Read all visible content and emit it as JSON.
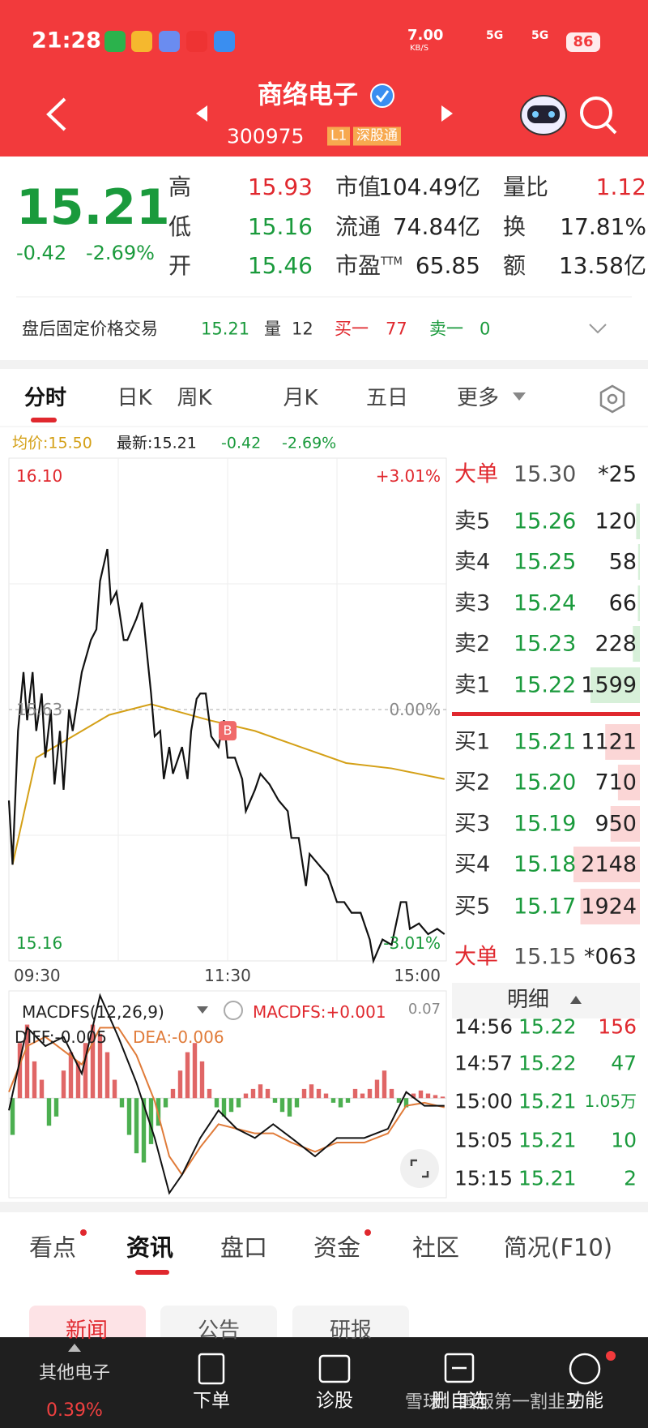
{
  "status_bar": {
    "time": "21:28",
    "speed": "7.00",
    "speed_unit": "KB/S",
    "network": [
      "5G",
      "5G"
    ],
    "battery": "86"
  },
  "header": {
    "title": "商络电子",
    "code": "300975",
    "tags": [
      "L1",
      "深股通"
    ]
  },
  "quote": {
    "price": "15.21",
    "change": "-0.42",
    "change_pct": "-2.69%",
    "stats": [
      [
        {
          "label": "高",
          "value": "15.93"
        },
        {
          "label": "低",
          "value": "15.16"
        },
        {
          "label": "开",
          "value": "15.46"
        }
      ],
      [
        {
          "label": "市值",
          "value": "104.49亿"
        },
        {
          "label": "流通",
          "value": "74.84亿"
        },
        {
          "label": "市盈",
          "sup": "TTM",
          "value": "65.85"
        }
      ],
      [
        {
          "label": "量比",
          "value": "1.12"
        },
        {
          "label": "换",
          "value": "17.81%"
        },
        {
          "label": "额",
          "value": "13.58亿"
        }
      ]
    ]
  },
  "after_hours": {
    "label": "盘后固定价格交易",
    "price": "15.21",
    "volume_label": "量",
    "volume": "12",
    "bid1_label": "买一",
    "bid1": "77",
    "ask1_label": "卖一",
    "ask1": "0"
  },
  "tabs": [
    "分时",
    "日K",
    "周K",
    "月K",
    "五日",
    "更多"
  ],
  "info_line": {
    "avg": "均价:15.50",
    "latest": "最新:15.21",
    "change": "-0.42",
    "change_pct": "-2.69%"
  },
  "intraday": {
    "type": "line",
    "ylim": [
      15.16,
      16.1
    ],
    "xlim": [
      0,
      240
    ],
    "yticks": [
      {
        "value": 16.1,
        "label": "16.10"
      },
      15.63,
      15.16
    ],
    "pct_labels": [
      "+3.01%",
      "0.00%",
      "-3.01%"
    ],
    "time_labels": [
      "09:30",
      "11:30",
      "15:00"
    ],
    "price": {
      "color": "#111111",
      "x": [
        0,
        2,
        5,
        8,
        10,
        13,
        15,
        18,
        20,
        23,
        25,
        28,
        30,
        33,
        35,
        40,
        45,
        48,
        50,
        54,
        56,
        59,
        63,
        65,
        70,
        73,
        75,
        78,
        80,
        83,
        85,
        88,
        90,
        95,
        98,
        100,
        103,
        105,
        108,
        111,
        115,
        118,
        120,
        124,
        128,
        130,
        135,
        138,
        143,
        148,
        153,
        155,
        159,
        163,
        165,
        170,
        175,
        180,
        184,
        188,
        193,
        198,
        200,
        205,
        210,
        215,
        218,
        220,
        225,
        230,
        235,
        239
      ],
      "values": [
        15.46,
        15.34,
        15.59,
        15.7,
        15.61,
        15.7,
        15.59,
        15.66,
        15.54,
        15.63,
        15.49,
        15.59,
        15.48,
        15.63,
        15.59,
        15.7,
        15.76,
        15.78,
        15.87,
        15.93,
        15.83,
        15.85,
        15.76,
        15.76,
        15.8,
        15.83,
        15.76,
        15.66,
        15.58,
        15.59,
        15.5,
        15.56,
        15.51,
        15.56,
        15.5,
        15.59,
        15.65,
        15.66,
        15.66,
        15.58,
        15.56,
        15.61,
        15.54,
        15.54,
        15.5,
        15.44,
        15.48,
        15.51,
        15.49,
        15.46,
        15.44,
        15.39,
        15.39,
        15.3,
        15.36,
        15.34,
        15.32,
        15.27,
        15.27,
        15.25,
        15.25,
        15.2,
        15.16,
        15.2,
        15.19,
        15.27,
        15.27,
        15.22,
        15.23,
        15.21,
        15.22,
        15.21
      ]
    },
    "average": {
      "color": "#d4a017",
      "x": [
        2,
        15,
        35,
        55,
        78,
        110,
        135,
        160,
        185,
        210,
        239
      ],
      "values": [
        15.34,
        15.54,
        15.58,
        15.62,
        15.64,
        15.61,
        15.59,
        15.56,
        15.53,
        15.52,
        15.5
      ]
    },
    "marker": {
      "label": "B",
      "x": 120,
      "value": 15.56
    }
  },
  "order_book": {
    "big_top": {
      "label": "大单",
      "price": "15.30",
      "volume": "*25"
    },
    "asks": [
      {
        "label": "卖5",
        "price": "15.26",
        "volume": 120
      },
      {
        "label": "卖4",
        "price": "15.25",
        "volume": 58
      },
      {
        "label": "卖3",
        "price": "15.24",
        "volume": 66
      },
      {
        "label": "卖2",
        "price": "15.23",
        "volume": 228
      },
      {
        "label": "卖1",
        "price": "15.22",
        "volume": 1599
      }
    ],
    "bids": [
      {
        "label": "买1",
        "price": "15.21",
        "volume": 1121
      },
      {
        "label": "买2",
        "price": "15.20",
        "volume": 710
      },
      {
        "label": "买3",
        "price": "15.19",
        "volume": 950
      },
      {
        "label": "买4",
        "price": "15.18",
        "volume": 2148
      },
      {
        "label": "买5",
        "price": "15.17",
        "volume": 1924
      }
    ],
    "big_bottom": {
      "label": "大单",
      "price": "15.15",
      "volume": "*063"
    },
    "detail_label": "明细",
    "trades": [
      {
        "time": "14:56",
        "price": "15.22",
        "volume": "156",
        "color": "#e0282e"
      },
      {
        "time": "14:57",
        "price": "15.22",
        "volume": "47",
        "color": "#1a9a3c"
      },
      {
        "time": "15:00",
        "price": "15.21",
        "volume": "1.05万",
        "color": "#1a9a3c"
      },
      {
        "time": "15:05",
        "price": "15.21",
        "volume": "10",
        "color": "#1a9a3c"
      },
      {
        "time": "15:15",
        "price": "15.21",
        "volume": "2",
        "color": "#1a9a3c"
      }
    ]
  },
  "macd": {
    "title": "MACDFS(12,26,9)",
    "macdfs_label": "MACDFS:+0.001",
    "top_label": "0.07",
    "diff_label": "DIFF:-0.005",
    "dea_label": "DEA:-0.006",
    "ylim": [
      -0.065,
      0.07
    ],
    "xlim": [
      0,
      240
    ],
    "bars": [
      -0.024,
      0.036,
      0.048,
      0.024,
      0.012,
      -0.018,
      -0.012,
      0.018,
      0.03,
      0.024,
      0.036,
      0.048,
      0.042,
      0.03,
      0.012,
      -0.006,
      -0.024,
      -0.036,
      -0.042,
      -0.03,
      -0.018,
      -0.006,
      0.006,
      0.018,
      0.03,
      0.036,
      0.024,
      0.006,
      -0.006,
      -0.012,
      -0.009,
      -0.006,
      0.003,
      0.006,
      0.009,
      0.006,
      -0.003,
      -0.009,
      -0.012,
      -0.006,
      0.006,
      0.009,
      0.006,
      0.003,
      -0.003,
      -0.006,
      -0.003,
      0.006,
      0.003,
      0.006,
      0.012,
      0.018,
      0.006,
      -0.003,
      -0.006,
      0.003,
      0.005,
      0.003,
      0.002,
      0.001
    ],
    "diff": {
      "color": "#111111",
      "x": [
        0,
        10,
        20,
        30,
        40,
        50,
        60,
        70,
        80,
        88,
        95,
        105,
        115,
        125,
        135,
        145,
        155,
        168,
        180,
        195,
        208,
        218,
        228,
        239
      ],
      "values": [
        -0.008,
        0.046,
        0.034,
        0.04,
        0.016,
        0.067,
        0.04,
        0.01,
        -0.026,
        -0.062,
        -0.05,
        -0.026,
        -0.008,
        -0.02,
        -0.026,
        -0.017,
        -0.026,
        -0.038,
        -0.026,
        -0.026,
        -0.02,
        0.004,
        -0.005,
        -0.005
      ]
    },
    "dea": {
      "color": "#e07b39",
      "x": [
        0,
        10,
        20,
        30,
        40,
        50,
        60,
        70,
        80,
        88,
        95,
        105,
        115,
        125,
        135,
        145,
        155,
        168,
        180,
        195,
        208,
        218,
        228,
        239
      ],
      "values": [
        0.004,
        0.034,
        0.04,
        0.031,
        0.022,
        0.046,
        0.046,
        0.028,
        -0.002,
        -0.038,
        -0.05,
        -0.032,
        -0.017,
        -0.02,
        -0.023,
        -0.023,
        -0.029,
        -0.035,
        -0.029,
        -0.029,
        -0.023,
        -0.005,
        -0.003,
        -0.006
      ]
    }
  },
  "bottom_tabs": [
    "看点",
    "资讯",
    "盘口",
    "资金",
    "社区",
    "简况(F10)"
  ],
  "sub_tabs": [
    "新闻",
    "公告",
    "研报"
  ],
  "bottom_bar": {
    "sector": "其他电子",
    "sector_change": "0.39%",
    "items": [
      "下单",
      "诊股",
      "删自选",
      "功能"
    ]
  },
  "watermark": "雪球：国服第一割韭王"
}
